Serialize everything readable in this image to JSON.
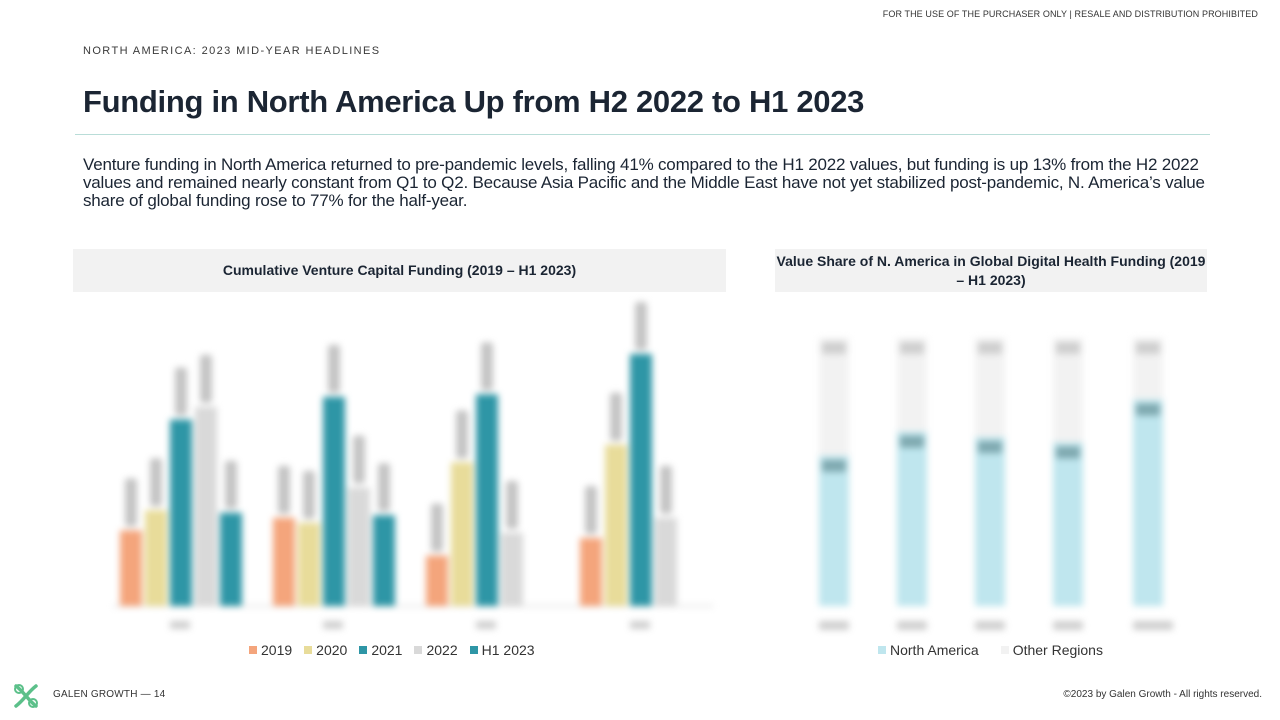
{
  "disclaimer": "FOR THE USE OF THE PURCHASER ONLY | RESALE AND DISTRIBUTION PROHIBITED",
  "kicker": "NORTH AMERICA: 2023 MID-YEAR HEADLINES",
  "title": "Funding in North America Up from H2 2022 to H1 2023",
  "intro": "Venture funding in North America returned to pre-pandemic levels, falling 41% compared to the H1 2022 values, but funding is up 13% from the H2 2022 values and remained nearly constant from Q1 to Q2. Because Asia Pacific and the Middle East have not yet stabilized post-pandemic, N. America’s value share of global funding rose to 77% for the half-year.",
  "colors": {
    "c2019": "#f4a57c",
    "c2020": "#e8dc9a",
    "c2021": "#2e96a6",
    "c2022": "#d9d9d9",
    "cH1": "#2e96a6",
    "north_america": "#bfe6ee",
    "other_regions": "#f2f2f2"
  },
  "chart_data": [
    {
      "type": "bar",
      "title": "Cumulative Venture Capital Funding (2019 – H1 2023)",
      "categories": [
        "",
        "",
        "",
        ""
      ],
      "ylim": [
        0,
        1
      ],
      "series": [
        {
          "name": "2019",
          "values": [
            0.3,
            0.35,
            0.2,
            0.27
          ]
        },
        {
          "name": "2020",
          "values": [
            0.38,
            0.33,
            0.57,
            0.64
          ]
        },
        {
          "name": "2021",
          "values": [
            0.74,
            0.83,
            0.84,
            1.0
          ]
        },
        {
          "name": "2022",
          "values": [
            0.79,
            0.47,
            0.29,
            0.35
          ]
        },
        {
          "name": "H1 2023",
          "values": [
            0.37,
            0.36,
            null,
            null
          ]
        }
      ],
      "legend": "bottom"
    },
    {
      "type": "bar",
      "stacked": true,
      "title": "Value Share of N. America in Global Digital Health Funding (2019 – H1 2023)",
      "categories": [
        "",
        "",
        "",
        "",
        ""
      ],
      "ylim": [
        0,
        100
      ],
      "series": [
        {
          "name": "North America",
          "values": [
            56,
            65,
            63,
            61,
            77
          ]
        },
        {
          "name": "Other Regions",
          "values": [
            44,
            35,
            37,
            39,
            23
          ]
        }
      ],
      "legend": "bottom"
    }
  ],
  "footer": {
    "brand": "GALEN GROWTH",
    "dash": "—",
    "page": "14",
    "copyright": "©2023 by Galen Growth  - All rights reserved."
  }
}
